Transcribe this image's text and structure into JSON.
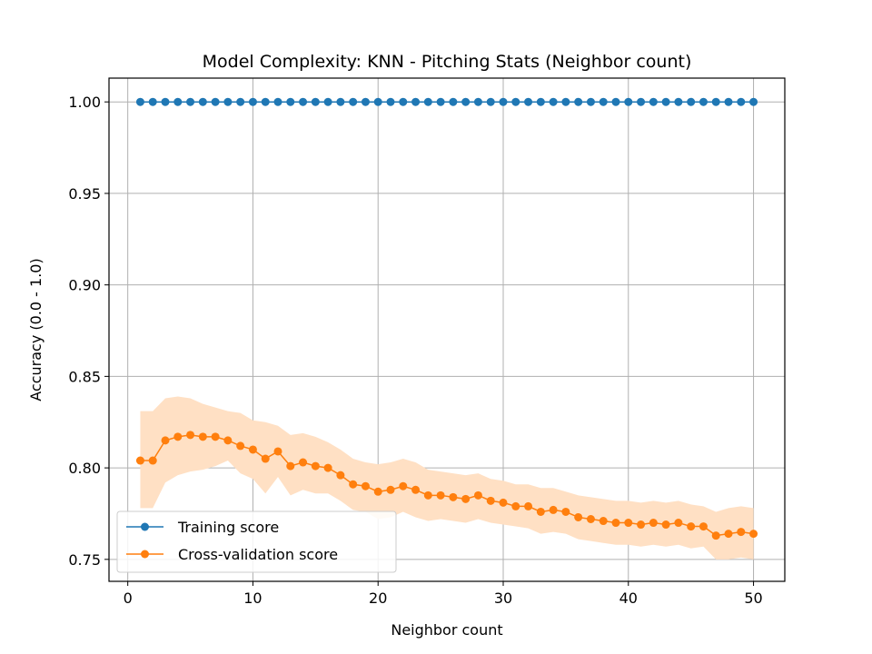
{
  "chart_data": {
    "type": "line",
    "title": "Model Complexity: KNN - Pitching Stats (Neighbor count)",
    "xlabel": "Neighbor count",
    "ylabel": "Accuracy (0.0 - 1.0)",
    "xlim": [
      -1.5,
      52.5
    ],
    "ylim": [
      0.738,
      1.013
    ],
    "xticks": [
      0,
      10,
      20,
      30,
      40,
      50
    ],
    "yticks": [
      0.75,
      0.8,
      0.85,
      0.9,
      0.95,
      1.0
    ],
    "ytick_labels": [
      "0.75",
      "0.80",
      "0.85",
      "0.90",
      "0.95",
      "1.00"
    ],
    "grid": true,
    "legend_position": "lower-left",
    "x": [
      1,
      2,
      3,
      4,
      5,
      6,
      7,
      8,
      9,
      10,
      11,
      12,
      13,
      14,
      15,
      16,
      17,
      18,
      19,
      20,
      21,
      22,
      23,
      24,
      25,
      26,
      27,
      28,
      29,
      30,
      31,
      32,
      33,
      34,
      35,
      36,
      37,
      38,
      39,
      40,
      41,
      42,
      43,
      44,
      45,
      46,
      47,
      48,
      49,
      50
    ],
    "series": [
      {
        "name": "Training score",
        "color": "#1f77b4",
        "values": [
          1.0,
          1.0,
          1.0,
          1.0,
          1.0,
          1.0,
          1.0,
          1.0,
          1.0,
          1.0,
          1.0,
          1.0,
          1.0,
          1.0,
          1.0,
          1.0,
          1.0,
          1.0,
          1.0,
          1.0,
          1.0,
          1.0,
          1.0,
          1.0,
          1.0,
          1.0,
          1.0,
          1.0,
          1.0,
          1.0,
          1.0,
          1.0,
          1.0,
          1.0,
          1.0,
          1.0,
          1.0,
          1.0,
          1.0,
          1.0,
          1.0,
          1.0,
          1.0,
          1.0,
          1.0,
          1.0,
          1.0,
          1.0,
          1.0,
          1.0
        ]
      },
      {
        "name": "Cross-validation score",
        "color": "#ff7f0e",
        "band_color": "#ffe0c4",
        "values": [
          0.804,
          0.804,
          0.815,
          0.817,
          0.818,
          0.817,
          0.817,
          0.815,
          0.812,
          0.81,
          0.805,
          0.809,
          0.801,
          0.803,
          0.801,
          0.8,
          0.796,
          0.791,
          0.79,
          0.787,
          0.788,
          0.79,
          0.788,
          0.785,
          0.785,
          0.784,
          0.783,
          0.785,
          0.782,
          0.781,
          0.779,
          0.779,
          0.776,
          0.777,
          0.776,
          0.773,
          0.772,
          0.771,
          0.77,
          0.77,
          0.769,
          0.77,
          0.769,
          0.77,
          0.768,
          0.768,
          0.763,
          0.764,
          0.765,
          0.764
        ],
        "upper": [
          0.831,
          0.831,
          0.838,
          0.839,
          0.838,
          0.835,
          0.833,
          0.831,
          0.83,
          0.826,
          0.825,
          0.823,
          0.818,
          0.819,
          0.817,
          0.814,
          0.81,
          0.805,
          0.803,
          0.802,
          0.803,
          0.805,
          0.803,
          0.799,
          0.798,
          0.797,
          0.796,
          0.797,
          0.794,
          0.793,
          0.791,
          0.791,
          0.789,
          0.789,
          0.787,
          0.785,
          0.784,
          0.783,
          0.782,
          0.782,
          0.781,
          0.782,
          0.781,
          0.782,
          0.78,
          0.779,
          0.776,
          0.778,
          0.779,
          0.778
        ],
        "lower": [
          0.778,
          0.778,
          0.792,
          0.796,
          0.798,
          0.799,
          0.801,
          0.804,
          0.797,
          0.794,
          0.786,
          0.795,
          0.785,
          0.788,
          0.786,
          0.786,
          0.782,
          0.777,
          0.776,
          0.772,
          0.773,
          0.776,
          0.773,
          0.771,
          0.772,
          0.771,
          0.77,
          0.772,
          0.77,
          0.769,
          0.768,
          0.767,
          0.764,
          0.765,
          0.764,
          0.761,
          0.76,
          0.759,
          0.758,
          0.758,
          0.757,
          0.758,
          0.757,
          0.758,
          0.756,
          0.757,
          0.75,
          0.75,
          0.751,
          0.75
        ]
      }
    ]
  }
}
